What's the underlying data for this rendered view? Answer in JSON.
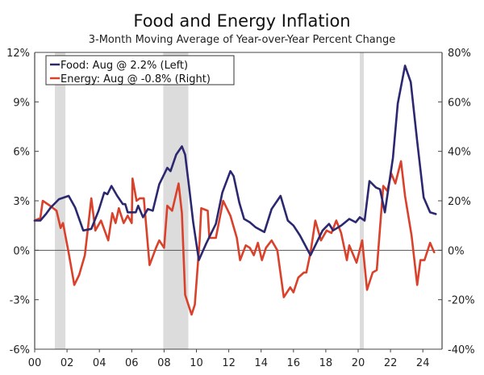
{
  "chart_data": {
    "type": "line",
    "title": "Food and Energy Inflation",
    "subtitle": "3-Month Moving Average of Year-over-Year Percent Change",
    "x_range": [
      2000,
      2025.2
    ],
    "x_ticks": [
      {
        "value": 2000,
        "label": "00"
      },
      {
        "value": 2002,
        "label": "02"
      },
      {
        "value": 2004,
        "label": "04"
      },
      {
        "value": 2006,
        "label": "06"
      },
      {
        "value": 2008,
        "label": "08"
      },
      {
        "value": 2010,
        "label": "10"
      },
      {
        "value": 2012,
        "label": "12"
      },
      {
        "value": 2014,
        "label": "14"
      },
      {
        "value": 2016,
        "label": "16"
      },
      {
        "value": 2018,
        "label": "18"
      },
      {
        "value": 2020,
        "label": "20"
      },
      {
        "value": 2022,
        "label": "22"
      },
      {
        "value": 2024,
        "label": "24"
      }
    ],
    "y_left": {
      "range": [
        -6,
        12
      ],
      "ticks": [
        {
          "value": 12,
          "label": "12%"
        },
        {
          "value": 9,
          "label": "9%"
        },
        {
          "value": 6,
          "label": "6%"
        },
        {
          "value": 3,
          "label": "3%"
        },
        {
          "value": 0,
          "label": "0%"
        },
        {
          "value": -3,
          "label": "-3%"
        },
        {
          "value": -6,
          "label": "-6%"
        }
      ]
    },
    "y_right": {
      "range": [
        -40,
        80
      ],
      "ticks": [
        {
          "value": 80,
          "label": "80%"
        },
        {
          "value": 60,
          "label": "60%"
        },
        {
          "value": 40,
          "label": "40%"
        },
        {
          "value": 20,
          "label": "20%"
        },
        {
          "value": 0,
          "label": "0%"
        },
        {
          "value": -20,
          "label": "-20%"
        },
        {
          "value": -40,
          "label": "-40%"
        }
      ]
    },
    "recessions": [
      [
        2001.25,
        2001.9
      ],
      [
        2007.95,
        2009.5
      ],
      [
        2020.1,
        2020.35
      ]
    ],
    "recession_color": "#dcdcdc",
    "legend_placement": "top-left",
    "series": [
      {
        "name": "Food: Aug @ 2.2% (Left)",
        "axis": "left",
        "color": "#2b2870",
        "points": [
          [
            2000,
            1.8
          ],
          [
            2000.35,
            1.8
          ],
          [
            2000.7,
            2.2
          ],
          [
            2001,
            2.6
          ],
          [
            2001.5,
            3.1
          ],
          [
            2002.1,
            3.3
          ],
          [
            2002.5,
            2.6
          ],
          [
            2003,
            1.2
          ],
          [
            2003.5,
            1.3
          ],
          [
            2003.95,
            2.4
          ],
          [
            2004.3,
            3.5
          ],
          [
            2004.5,
            3.4
          ],
          [
            2004.75,
            3.9
          ],
          [
            2005.1,
            3.3
          ],
          [
            2005.45,
            2.8
          ],
          [
            2005.6,
            2.8
          ],
          [
            2005.75,
            2.3
          ],
          [
            2006.25,
            2.3
          ],
          [
            2006.4,
            2.7
          ],
          [
            2006.7,
            2.0
          ],
          [
            2007.0,
            2.5
          ],
          [
            2007.3,
            2.4
          ],
          [
            2007.7,
            4.0
          ],
          [
            2008.2,
            5.0
          ],
          [
            2008.4,
            4.8
          ],
          [
            2008.75,
            5.8
          ],
          [
            2009.1,
            6.3
          ],
          [
            2009.3,
            5.8
          ],
          [
            2009.55,
            3.8
          ],
          [
            2009.8,
            1.7
          ],
          [
            2010.15,
            -0.6
          ],
          [
            2010.6,
            0.4
          ],
          [
            2011.2,
            1.6
          ],
          [
            2011.6,
            3.5
          ],
          [
            2012.1,
            4.8
          ],
          [
            2012.3,
            4.5
          ],
          [
            2012.65,
            2.9
          ],
          [
            2012.95,
            1.9
          ],
          [
            2013.3,
            1.7
          ],
          [
            2013.65,
            1.4
          ],
          [
            2014.2,
            1.1
          ],
          [
            2014.65,
            2.5
          ],
          [
            2015.2,
            3.3
          ],
          [
            2015.65,
            1.8
          ],
          [
            2016.0,
            1.5
          ],
          [
            2016.4,
            0.9
          ],
          [
            2017.05,
            -0.3
          ],
          [
            2017.8,
            1.2
          ],
          [
            2018.2,
            1.6
          ],
          [
            2018.45,
            1.2
          ],
          [
            2018.95,
            1.5
          ],
          [
            2019.45,
            1.9
          ],
          [
            2019.85,
            1.7
          ],
          [
            2020.1,
            2.0
          ],
          [
            2020.4,
            1.8
          ],
          [
            2020.7,
            4.2
          ],
          [
            2021.1,
            3.8
          ],
          [
            2021.35,
            3.7
          ],
          [
            2021.65,
            2.3
          ],
          [
            2022.15,
            5.6
          ],
          [
            2022.45,
            8.9
          ],
          [
            2022.9,
            11.2
          ],
          [
            2023.25,
            10.2
          ],
          [
            2023.65,
            6.6
          ],
          [
            2024.05,
            3.2
          ],
          [
            2024.45,
            2.3
          ],
          [
            2024.8,
            2.2
          ]
        ]
      },
      {
        "name": "Energy: Aug @ -0.8% (Right)",
        "axis": "right",
        "color": "#d9412b",
        "points": [
          [
            2000,
            12
          ],
          [
            2000.35,
            13
          ],
          [
            2000.5,
            20
          ],
          [
            2000.95,
            18
          ],
          [
            2001.35,
            16
          ],
          [
            2001.6,
            9
          ],
          [
            2001.75,
            11
          ],
          [
            2002.1,
            -1
          ],
          [
            2002.45,
            -14
          ],
          [
            2002.75,
            -10
          ],
          [
            2003.1,
            -2
          ],
          [
            2003.5,
            21
          ],
          [
            2003.75,
            8
          ],
          [
            2004.1,
            12
          ],
          [
            2004.55,
            4
          ],
          [
            2004.8,
            15
          ],
          [
            2005.0,
            11
          ],
          [
            2005.2,
            17
          ],
          [
            2005.5,
            11
          ],
          [
            2005.75,
            14
          ],
          [
            2006.0,
            11
          ],
          [
            2006.05,
            29
          ],
          [
            2006.3,
            20
          ],
          [
            2006.5,
            21
          ],
          [
            2006.75,
            21
          ],
          [
            2007.1,
            -6
          ],
          [
            2007.5,
            1
          ],
          [
            2007.7,
            4
          ],
          [
            2008.0,
            1
          ],
          [
            2008.2,
            18
          ],
          [
            2008.5,
            16
          ],
          [
            2008.9,
            27
          ],
          [
            2009.1,
            15
          ],
          [
            2009.3,
            -18
          ],
          [
            2009.5,
            -22
          ],
          [
            2009.7,
            -26
          ],
          [
            2009.9,
            -22
          ],
          [
            2010.2,
            4
          ],
          [
            2010.3,
            17
          ],
          [
            2010.7,
            16
          ],
          [
            2010.8,
            5
          ],
          [
            2011.2,
            5
          ],
          [
            2011.65,
            20
          ],
          [
            2012.1,
            14
          ],
          [
            2012.5,
            5
          ],
          [
            2012.7,
            -4
          ],
          [
            2013.05,
            2
          ],
          [
            2013.3,
            1
          ],
          [
            2013.55,
            -2
          ],
          [
            2013.8,
            3
          ],
          [
            2014.05,
            -4
          ],
          [
            2014.3,
            1
          ],
          [
            2014.65,
            4
          ],
          [
            2015.0,
            0
          ],
          [
            2015.4,
            -19
          ],
          [
            2015.8,
            -15
          ],
          [
            2016.0,
            -17
          ],
          [
            2016.3,
            -11
          ],
          [
            2016.65,
            -9
          ],
          [
            2016.8,
            -9
          ],
          [
            2017.05,
            -1
          ],
          [
            2017.35,
            12
          ],
          [
            2017.7,
            4
          ],
          [
            2018.05,
            8
          ],
          [
            2018.35,
            7
          ],
          [
            2018.65,
            12
          ],
          [
            2018.95,
            7
          ],
          [
            2019.3,
            -4
          ],
          [
            2019.45,
            2
          ],
          [
            2019.9,
            -5
          ],
          [
            2020.25,
            4
          ],
          [
            2020.55,
            -16
          ],
          [
            2020.9,
            -9
          ],
          [
            2021.15,
            -8
          ],
          [
            2021.55,
            26
          ],
          [
            2021.8,
            24
          ],
          [
            2022.05,
            31
          ],
          [
            2022.3,
            27
          ],
          [
            2022.65,
            36
          ],
          [
            2022.9,
            22
          ],
          [
            2023.3,
            6
          ],
          [
            2023.65,
            -14
          ],
          [
            2023.85,
            -4
          ],
          [
            2024.1,
            -4
          ],
          [
            2024.45,
            3
          ],
          [
            2024.7,
            -0.8
          ]
        ]
      }
    ]
  }
}
